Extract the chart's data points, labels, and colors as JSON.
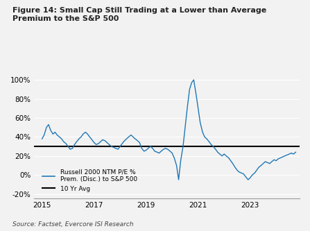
{
  "title": "Figure 14: Small Cap Still Trading at a Lower than Average\nPremium to the S&P 500",
  "source": "Source: Factset, Evercore ISI Research",
  "line_color": "#1f77b4",
  "avg_line_color": "#000000",
  "avg_value": 30,
  "ylim": [
    -25,
    105
  ],
  "yticks": [
    -20,
    0,
    20,
    40,
    60,
    80,
    100
  ],
  "ytick_labels": [
    "-20%",
    "0%",
    "20%",
    "40%",
    "60%",
    "80%",
    "100%"
  ],
  "xticks": [
    2015,
    2017,
    2019,
    2021,
    2023
  ],
  "background_color": "#f0f0f0",
  "legend_items": [
    {
      "label": "Russell 2000 NTM P/E %\nPrem. (Disc.) to S&P 500",
      "color": "#1f77b4",
      "linestyle": "-"
    },
    {
      "label": "10 Yr Avg",
      "color": "#000000",
      "linestyle": "-"
    }
  ],
  "series": {
    "dates": [
      2015.0,
      2015.08,
      2015.17,
      2015.25,
      2015.33,
      2015.42,
      2015.5,
      2015.58,
      2015.67,
      2015.75,
      2015.83,
      2015.92,
      2016.0,
      2016.08,
      2016.17,
      2016.25,
      2016.33,
      2016.42,
      2016.5,
      2016.58,
      2016.67,
      2016.75,
      2016.83,
      2016.92,
      2017.0,
      2017.08,
      2017.17,
      2017.25,
      2017.33,
      2017.42,
      2017.5,
      2017.58,
      2017.67,
      2017.75,
      2017.83,
      2017.92,
      2018.0,
      2018.08,
      2018.17,
      2018.25,
      2018.33,
      2018.42,
      2018.5,
      2018.58,
      2018.67,
      2018.75,
      2018.83,
      2018.92,
      2019.0,
      2019.08,
      2019.17,
      2019.25,
      2019.33,
      2019.42,
      2019.5,
      2019.58,
      2019.67,
      2019.75,
      2019.83,
      2019.92,
      2020.0,
      2020.08,
      2020.17,
      2020.25,
      2020.33,
      2020.42,
      2020.5,
      2020.58,
      2020.67,
      2020.75,
      2020.83,
      2020.92,
      2021.0,
      2021.08,
      2021.17,
      2021.25,
      2021.33,
      2021.42,
      2021.5,
      2021.58,
      2021.67,
      2021.75,
      2021.83,
      2021.92,
      2022.0,
      2022.08,
      2022.17,
      2022.25,
      2022.33,
      2022.42,
      2022.5,
      2022.58,
      2022.67,
      2022.75,
      2022.83,
      2022.92,
      2023.0,
      2023.08,
      2023.17,
      2023.25,
      2023.33,
      2023.42,
      2023.5,
      2023.58,
      2023.67,
      2023.75,
      2023.83,
      2023.92,
      2024.0,
      2024.08,
      2024.17,
      2024.25,
      2024.33,
      2024.42,
      2024.5,
      2024.58,
      2024.67,
      2024.75
    ],
    "values": [
      38,
      42,
      50,
      53,
      47,
      43,
      45,
      42,
      40,
      38,
      35,
      33,
      30,
      27,
      28,
      32,
      35,
      38,
      40,
      43,
      45,
      43,
      40,
      37,
      34,
      32,
      33,
      35,
      37,
      36,
      34,
      32,
      30,
      29,
      28,
      27,
      30,
      33,
      36,
      38,
      40,
      42,
      40,
      38,
      36,
      34,
      28,
      25,
      26,
      28,
      30,
      28,
      25,
      24,
      23,
      25,
      27,
      28,
      27,
      25,
      23,
      18,
      10,
      -5,
      15,
      30,
      50,
      70,
      90,
      97,
      100,
      85,
      70,
      55,
      45,
      40,
      38,
      35,
      32,
      30,
      27,
      24,
      22,
      20,
      22,
      20,
      18,
      15,
      12,
      8,
      5,
      3,
      2,
      1,
      -2,
      -5,
      -3,
      0,
      2,
      5,
      8,
      10,
      12,
      14,
      13,
      12,
      14,
      16,
      15,
      17,
      18,
      19,
      20,
      21,
      22,
      23,
      22,
      24
    ]
  }
}
